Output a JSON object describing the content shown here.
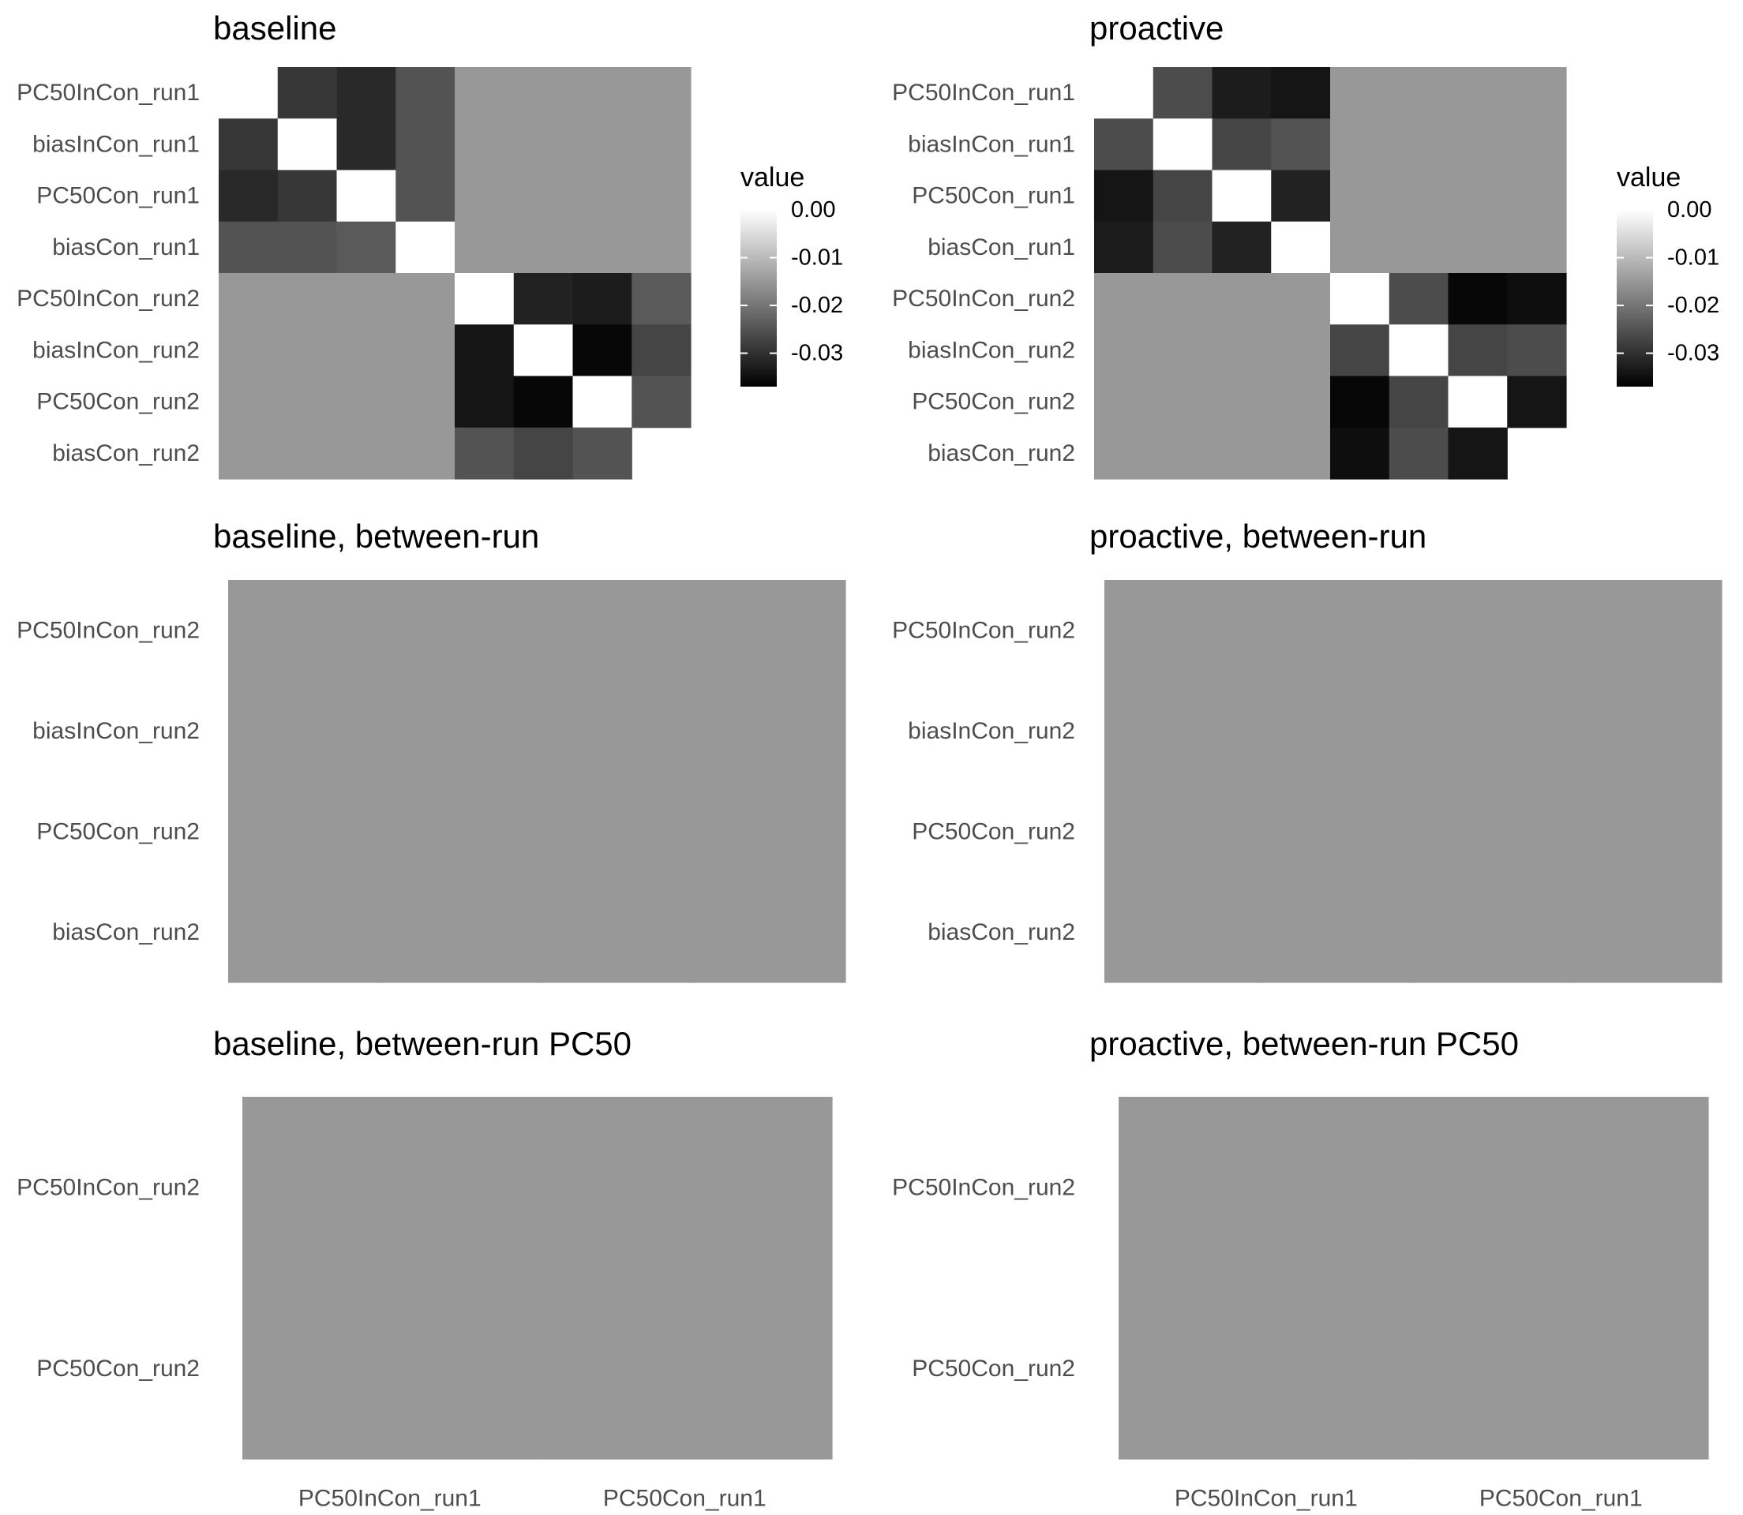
{
  "chart_data": [
    {
      "type": "heatmap",
      "title": "baseline",
      "rows": [
        "PC50InCon_run1",
        "biasInCon_run1",
        "PC50Con_run1",
        "biasCon_run1",
        "PC50InCon_run2",
        "biasInCon_run2",
        "PC50Con_run2",
        "biasCon_run2"
      ],
      "cols": [
        "PC50InCon_run1",
        "biasInCon_run1",
        "PC50Con_run1",
        "biasCon_run1",
        "PC50InCon_run2",
        "biasInCon_run2",
        "PC50Con_run2",
        "biasCon_run2"
      ],
      "show_col_labels": false,
      "values": [
        [
          null,
          -0.029,
          -0.031,
          -0.025,
          -0.015,
          -0.015,
          -0.015,
          -0.015
        ],
        [
          -0.029,
          0.0,
          -0.031,
          -0.025,
          -0.015,
          -0.015,
          -0.015,
          -0.015
        ],
        [
          -0.031,
          -0.029,
          0.0,
          -0.025,
          -0.015,
          -0.015,
          -0.015,
          -0.015
        ],
        [
          -0.025,
          -0.025,
          -0.024,
          0.0,
          -0.015,
          -0.015,
          -0.015,
          -0.015
        ],
        [
          -0.015,
          -0.015,
          -0.015,
          -0.015,
          0.0,
          -0.032,
          -0.033,
          -0.024
        ],
        [
          -0.015,
          -0.015,
          -0.015,
          -0.015,
          -0.034,
          0.0,
          -0.036,
          -0.027
        ],
        [
          -0.015,
          -0.015,
          -0.015,
          -0.015,
          -0.034,
          -0.036,
          0.0,
          -0.025
        ],
        [
          -0.015,
          -0.015,
          -0.015,
          -0.015,
          -0.025,
          -0.027,
          -0.025,
          null
        ]
      ],
      "legend": {
        "title": "value",
        "ticks": [
          0.0,
          -0.01,
          -0.02,
          -0.03
        ],
        "tick_labels": [
          "0.00",
          "-0.01",
          "-0.02",
          "-0.03"
        ],
        "range": [
          -0.037,
          0.0
        ]
      }
    },
    {
      "type": "heatmap",
      "title": "proactive",
      "rows": [
        "PC50InCon_run1",
        "biasInCon_run1",
        "PC50Con_run1",
        "biasCon_run1",
        "PC50InCon_run2",
        "biasInCon_run2",
        "PC50Con_run2",
        "biasCon_run2"
      ],
      "cols": [
        "PC50InCon_run1",
        "biasInCon_run1",
        "PC50Con_run1",
        "biasCon_run1",
        "PC50InCon_run2",
        "biasInCon_run2",
        "PC50Con_run2",
        "biasCon_run2"
      ],
      "show_col_labels": false,
      "values": [
        [
          null,
          -0.026,
          -0.033,
          -0.034,
          -0.015,
          -0.015,
          -0.015,
          -0.015
        ],
        [
          -0.026,
          0.0,
          -0.027,
          -0.025,
          -0.015,
          -0.015,
          -0.015,
          -0.015
        ],
        [
          -0.034,
          -0.027,
          0.0,
          -0.032,
          -0.015,
          -0.015,
          -0.015,
          -0.015
        ],
        [
          -0.033,
          -0.026,
          -0.032,
          0.0,
          -0.015,
          -0.015,
          -0.015,
          -0.015
        ],
        [
          -0.015,
          -0.015,
          -0.015,
          -0.015,
          0.0,
          -0.026,
          -0.036,
          -0.035
        ],
        [
          -0.015,
          -0.015,
          -0.015,
          -0.015,
          -0.027,
          0.0,
          -0.027,
          -0.026
        ],
        [
          -0.015,
          -0.015,
          -0.015,
          -0.015,
          -0.036,
          -0.027,
          0.0,
          -0.034
        ],
        [
          -0.015,
          -0.015,
          -0.015,
          -0.015,
          -0.035,
          -0.026,
          -0.034,
          null
        ]
      ],
      "legend": {
        "title": "value",
        "ticks": [
          0.0,
          -0.01,
          -0.02,
          -0.03
        ],
        "tick_labels": [
          "0.00",
          "-0.01",
          "-0.02",
          "-0.03"
        ],
        "range": [
          -0.037,
          0.0
        ]
      }
    },
    {
      "type": "heatmap",
      "title": "baseline, between-run",
      "rows": [
        "PC50InCon_run2",
        "biasInCon_run2",
        "PC50Con_run2",
        "biasCon_run2"
      ],
      "cols": [
        "PC50InCon_run1",
        "biasInCon_run1",
        "PC50Con_run1",
        "biasCon_run1"
      ],
      "show_col_labels": false,
      "values": [
        [
          -0.015,
          -0.015,
          -0.015,
          -0.015
        ],
        [
          -0.015,
          -0.015,
          -0.015,
          -0.015
        ],
        [
          -0.015,
          -0.015,
          -0.015,
          -0.015
        ],
        [
          -0.015,
          -0.015,
          -0.015,
          -0.015
        ]
      ]
    },
    {
      "type": "heatmap",
      "title": "proactive, between-run",
      "rows": [
        "PC50InCon_run2",
        "biasInCon_run2",
        "PC50Con_run2",
        "biasCon_run2"
      ],
      "cols": [
        "PC50InCon_run1",
        "biasInCon_run1",
        "PC50Con_run1",
        "biasCon_run1"
      ],
      "show_col_labels": false,
      "values": [
        [
          -0.015,
          -0.015,
          -0.015,
          -0.015
        ],
        [
          -0.015,
          -0.015,
          -0.015,
          -0.015
        ],
        [
          -0.015,
          -0.015,
          -0.015,
          -0.015
        ],
        [
          -0.015,
          -0.015,
          -0.015,
          -0.015
        ]
      ]
    },
    {
      "type": "heatmap",
      "title": "baseline, between-run PC50",
      "rows": [
        "PC50InCon_run2",
        "PC50Con_run2"
      ],
      "cols": [
        "PC50InCon_run1",
        "PC50Con_run1"
      ],
      "show_col_labels": true,
      "values": [
        [
          -0.015,
          -0.015
        ],
        [
          -0.015,
          -0.015
        ]
      ]
    },
    {
      "type": "heatmap",
      "title": "proactive, between-run PC50",
      "rows": [
        "PC50InCon_run2",
        "PC50Con_run2"
      ],
      "cols": [
        "PC50InCon_run1",
        "PC50Con_run1"
      ],
      "show_col_labels": true,
      "values": [
        [
          -0.015,
          -0.015
        ],
        [
          -0.015,
          -0.015
        ]
      ]
    }
  ]
}
